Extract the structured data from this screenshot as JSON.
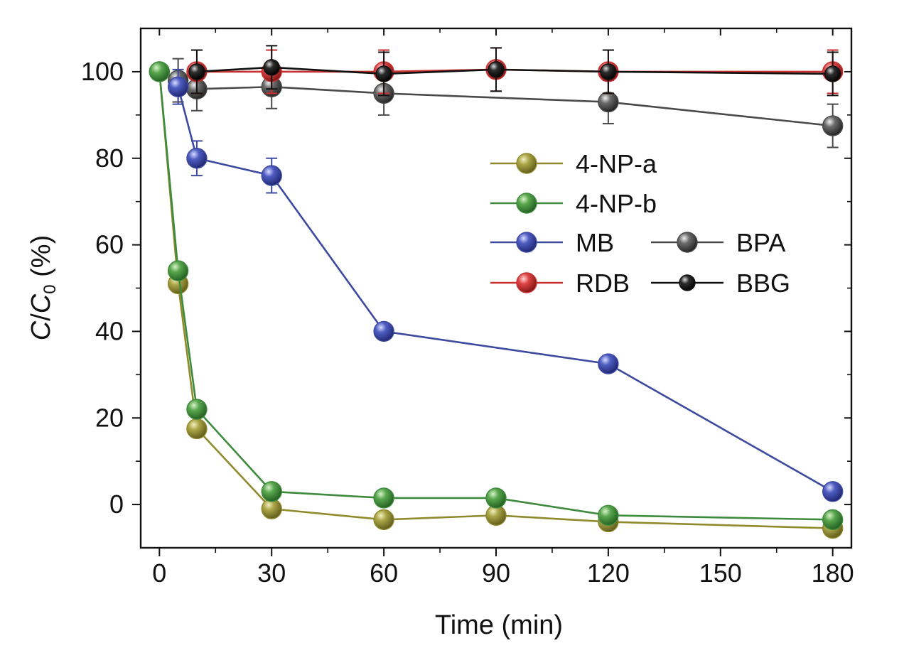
{
  "chart_data": {
    "type": "line",
    "xlabel": "Time (min)",
    "ylabel": {
      "main": "C",
      "slash": "/",
      "sub_main": "C",
      "subscript": "0",
      "unit": " (%)"
    },
    "xlim": [
      -5,
      185
    ],
    "ylim": [
      -10,
      110
    ],
    "xticks": [
      0,
      30,
      60,
      90,
      120,
      150,
      180
    ],
    "yticks": [
      0,
      20,
      40,
      60,
      80,
      100
    ],
    "grid": false,
    "legend_position": "upper-right inside plot",
    "series": [
      {
        "name": "4-NP-a",
        "color": "#8f8a2c",
        "x": [
          0,
          5,
          10,
          30,
          60,
          90,
          120,
          180
        ],
        "y": [
          100,
          51,
          17.5,
          -1,
          -3.5,
          -2.5,
          -4,
          -5.5
        ]
      },
      {
        "name": "4-NP-b",
        "color": "#3e8b3e",
        "x": [
          0,
          5,
          10,
          30,
          60,
          90,
          120,
          180
        ],
        "y": [
          100,
          54,
          22,
          3,
          1.5,
          1.5,
          -2.5,
          -3.5
        ]
      },
      {
        "name": "MB",
        "color": "#3e4aa0",
        "x": [
          5,
          10,
          30,
          60,
          120,
          180
        ],
        "y": [
          96.5,
          80,
          76,
          40,
          32.5,
          3
        ],
        "error": [
          4,
          4,
          4,
          0,
          0,
          0
        ]
      },
      {
        "name": "RDB",
        "color": "#c93030",
        "x": [
          10,
          30,
          60,
          90,
          120,
          180
        ],
        "y": [
          100,
          100,
          100,
          100.5,
          100,
          100
        ],
        "error": [
          5,
          5,
          5,
          5,
          5,
          5
        ]
      },
      {
        "name": "BPA",
        "color": "#4a4a4a",
        "x": [
          5,
          10,
          30,
          60,
          120,
          180
        ],
        "y": [
          98,
          96,
          96.5,
          95,
          93,
          87.5
        ],
        "error": [
          5,
          5,
          5,
          5,
          5,
          5
        ]
      },
      {
        "name": "BBG",
        "color": "#111111",
        "x": [
          10,
          30,
          60,
          90,
          120,
          180
        ],
        "y": [
          100,
          101,
          99.5,
          100.5,
          100,
          99.5
        ],
        "error": [
          5,
          5,
          5,
          5,
          5,
          5
        ]
      }
    ]
  }
}
